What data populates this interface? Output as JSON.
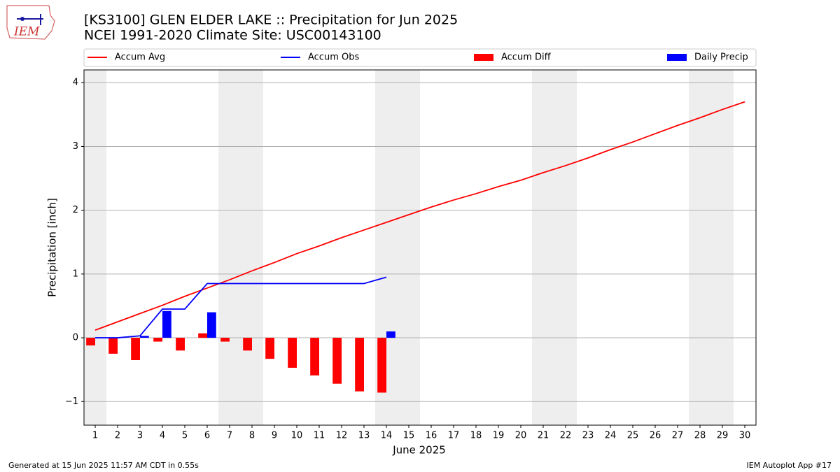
{
  "logo_text": "IEM",
  "footer": {
    "left": "Generated at 15 Jun 2025 11:57 AM CDT in 0.55s",
    "right": "IEM Autoplot App #17"
  },
  "chart_data": {
    "type": "combo",
    "title": "[KS3100] GLEN ELDER LAKE :: Precipitation for Jun 2025",
    "subtitle": "NCEI 1991-2020 Climate Site: USC00143100",
    "x_label": "June 2025",
    "y_label": "Precipitation [inch]",
    "x": [
      1,
      2,
      3,
      4,
      5,
      6,
      7,
      8,
      9,
      10,
      11,
      12,
      13,
      14,
      15,
      16,
      17,
      18,
      19,
      20,
      21,
      22,
      23,
      24,
      25,
      26,
      27,
      28,
      29,
      30
    ],
    "xlim": [
      0.5,
      30.5
    ],
    "xticks": [
      1,
      2,
      3,
      4,
      5,
      6,
      7,
      8,
      9,
      10,
      11,
      12,
      13,
      14,
      15,
      16,
      17,
      18,
      19,
      20,
      21,
      22,
      23,
      24,
      25,
      26,
      27,
      28,
      29,
      30
    ],
    "ylim": [
      -1.37,
      4.2
    ],
    "yticks": [
      {
        "value": -1,
        "label": "−1"
      },
      0,
      1,
      2,
      3,
      4
    ],
    "grid": true,
    "shaded_days": [
      1,
      7,
      8,
      14,
      15,
      21,
      22,
      28,
      29
    ],
    "series": [
      {
        "name": "Accum Avg",
        "type": "line",
        "color": "#ff0000",
        "values": [
          0.12,
          0.25,
          0.38,
          0.51,
          0.65,
          0.78,
          0.91,
          1.05,
          1.18,
          1.32,
          1.44,
          1.57,
          1.69,
          1.81,
          1.93,
          2.05,
          2.16,
          2.26,
          2.37,
          2.47,
          2.59,
          2.7,
          2.82,
          2.95,
          3.07,
          3.2,
          3.33,
          3.45,
          3.58,
          3.7
        ]
      },
      {
        "name": "Accum Obs",
        "type": "line",
        "color": "#0000ff",
        "values": [
          0,
          0,
          0.03,
          0.45,
          0.45,
          0.85,
          0.85,
          0.85,
          0.85,
          0.85,
          0.85,
          0.85,
          0.85,
          0.95,
          null,
          null,
          null,
          null,
          null,
          null,
          null,
          null,
          null,
          null,
          null,
          null,
          null,
          null,
          null,
          null
        ]
      },
      {
        "name": "Accum Diff",
        "type": "bar",
        "align": "left",
        "color": "#ff0000",
        "values": [
          -0.12,
          -0.25,
          -0.35,
          -0.06,
          -0.2,
          0.07,
          -0.06,
          -0.2,
          -0.33,
          -0.47,
          -0.59,
          -0.72,
          -0.84,
          -0.86,
          null,
          null,
          null,
          null,
          null,
          null,
          null,
          null,
          null,
          null,
          null,
          null,
          null,
          null,
          null,
          null
        ]
      },
      {
        "name": "Daily Precip",
        "type": "bar",
        "align": "right",
        "color": "#0000ff",
        "values": [
          0,
          0,
          0.03,
          0.42,
          0,
          0.4,
          0,
          0,
          0,
          0,
          0,
          0,
          0,
          0.1,
          null,
          null,
          null,
          null,
          null,
          null,
          null,
          null,
          null,
          null,
          null,
          null,
          null,
          null,
          null,
          null
        ]
      }
    ]
  }
}
